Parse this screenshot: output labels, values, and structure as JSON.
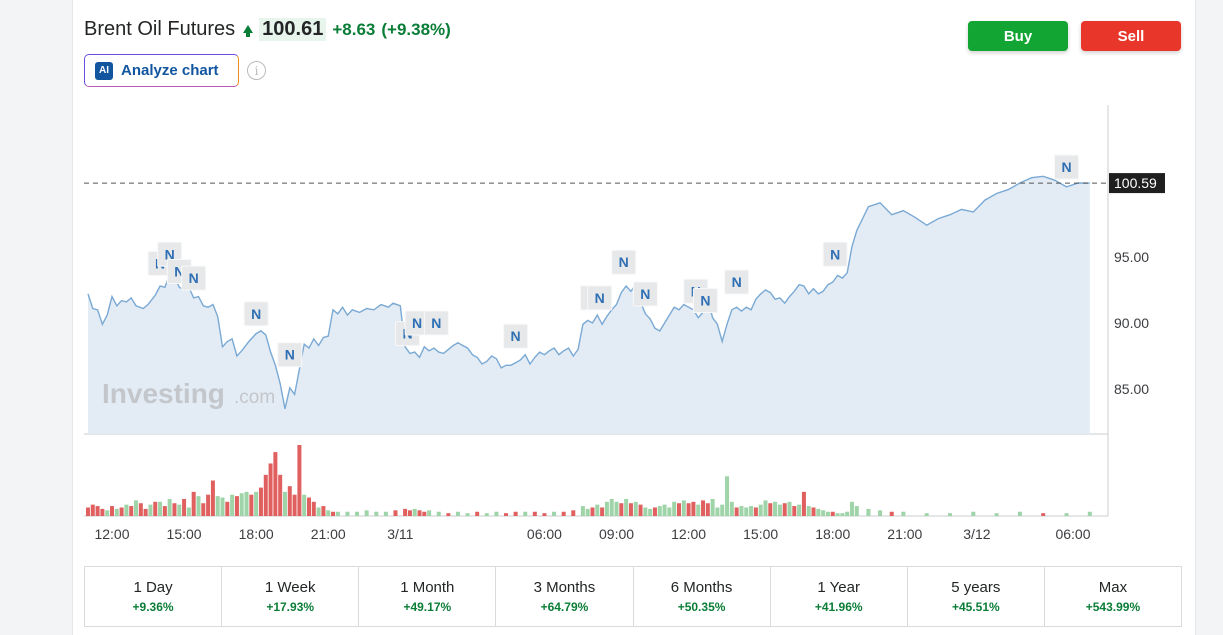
{
  "header": {
    "instrument": "Brent Oil Futures",
    "price": "100.61",
    "change": "+8.63",
    "change_pct": "(+9.38%)",
    "analyze_label": "Analyze chart",
    "ai_badge": "AI",
    "info_glyph": "i"
  },
  "actions": {
    "buy": "Buy",
    "sell": "Sell"
  },
  "watermark": {
    "main": "Investing",
    "suffix": ".com"
  },
  "colors": {
    "up": "#0a7d37",
    "line": "#7aa9d4",
    "area": "#e3ecf5",
    "vol_up": "#9fd4a9",
    "vol_down": "#e06060",
    "buy": "#13a533",
    "sell": "#e8372a"
  },
  "chart_data": {
    "type": "area",
    "yticks": [
      "85.00",
      "90.00",
      "95.00"
    ],
    "ytick_values": [
      85,
      90,
      95
    ],
    "ylim": [
      81.6,
      106.5
    ],
    "x_hours": [
      -13,
      19
    ],
    "xticks": [
      {
        "h": -12,
        "label": "12:00"
      },
      {
        "h": -9,
        "label": "15:00"
      },
      {
        "h": -6,
        "label": "18:00"
      },
      {
        "h": -3,
        "label": "21:00"
      },
      {
        "h": 0,
        "label": "3/11"
      },
      {
        "h": 6,
        "label": "06:00"
      },
      {
        "h": 9,
        "label": "09:00"
      },
      {
        "h": 12,
        "label": "12:00"
      },
      {
        "h": 15,
        "label": "15:00"
      },
      {
        "h": 18,
        "label": "18:00"
      },
      {
        "h": 21,
        "label": "21:00"
      },
      {
        "h": 24,
        "label": "3/12"
      },
      {
        "h": 28,
        "label": "06:00"
      }
    ],
    "last_price_label": "100.59",
    "last_price": 100.59,
    "price_series": [
      [
        -13.0,
        92.2
      ],
      [
        -12.8,
        91.1
      ],
      [
        -12.6,
        91.0
      ],
      [
        -12.4,
        89.9
      ],
      [
        -12.2,
        90.6
      ],
      [
        -12.0,
        92.0
      ],
      [
        -11.8,
        91.3
      ],
      [
        -11.6,
        91.7
      ],
      [
        -11.4,
        91.6
      ],
      [
        -11.2,
        91.9
      ],
      [
        -11.0,
        91.3
      ],
      [
        -10.7,
        91.1
      ],
      [
        -10.5,
        91.4
      ],
      [
        -10.2,
        92.1
      ],
      [
        -10.0,
        92.8
      ],
      [
        -9.8,
        92.7
      ],
      [
        -9.6,
        93.7
      ],
      [
        -9.4,
        93.5
      ],
      [
        -9.2,
        92.7
      ],
      [
        -9.0,
        92.5
      ],
      [
        -8.8,
        92.7
      ],
      [
        -8.6,
        91.9
      ],
      [
        -8.4,
        92.0
      ],
      [
        -8.2,
        91.3
      ],
      [
        -8.0,
        91.2
      ],
      [
        -7.8,
        91.4
      ],
      [
        -7.6,
        90.5
      ],
      [
        -7.4,
        88.2
      ],
      [
        -7.2,
        88.6
      ],
      [
        -7.0,
        88.8
      ],
      [
        -6.8,
        87.5
      ],
      [
        -6.6,
        87.9
      ],
      [
        -6.3,
        88.6
      ],
      [
        -6.0,
        89.2
      ],
      [
        -5.8,
        89.4
      ],
      [
        -5.6,
        89.1
      ],
      [
        -5.4,
        87.8
      ],
      [
        -5.2,
        86.8
      ],
      [
        -5.0,
        85.4
      ],
      [
        -4.8,
        83.5
      ],
      [
        -4.6,
        85.1
      ],
      [
        -4.4,
        84.6
      ],
      [
        -4.2,
        86.5
      ],
      [
        -4.0,
        88.4
      ],
      [
        -3.8,
        88.1
      ],
      [
        -3.6,
        88.8
      ],
      [
        -3.4,
        88.3
      ],
      [
        -3.2,
        88.9
      ],
      [
        -3.0,
        89.0
      ],
      [
        -2.8,
        91.0
      ],
      [
        -2.6,
        90.7
      ],
      [
        -2.4,
        91.2
      ],
      [
        -2.2,
        90.6
      ],
      [
        -2.0,
        91.0
      ],
      [
        -1.7,
        90.8
      ],
      [
        -1.4,
        91.1
      ],
      [
        -1.1,
        91.0
      ],
      [
        -0.8,
        91.4
      ],
      [
        -0.5,
        91.2
      ],
      [
        -0.3,
        91.5
      ],
      [
        0.0,
        91.3
      ],
      [
        0.2,
        88.2
      ],
      [
        0.4,
        87.7
      ],
      [
        0.6,
        87.8
      ],
      [
        0.8,
        87.4
      ],
      [
        1.0,
        88.2
      ],
      [
        1.2,
        87.9
      ],
      [
        1.4,
        88.1
      ],
      [
        1.6,
        87.8
      ],
      [
        1.8,
        87.7
      ],
      [
        2.0,
        88.0
      ],
      [
        2.2,
        88.3
      ],
      [
        2.4,
        88.5
      ],
      [
        2.6,
        88.3
      ],
      [
        2.8,
        88.1
      ],
      [
        3.0,
        87.6
      ],
      [
        3.2,
        87.4
      ],
      [
        3.4,
        86.9
      ],
      [
        3.6,
        87.1
      ],
      [
        3.8,
        87.5
      ],
      [
        4.0,
        87.3
      ],
      [
        4.2,
        86.6
      ],
      [
        4.4,
        86.8
      ],
      [
        4.6,
        86.8
      ],
      [
        4.8,
        87.0
      ],
      [
        5.0,
        87.2
      ],
      [
        5.2,
        87.6
      ],
      [
        5.4,
        86.9
      ],
      [
        5.6,
        87.4
      ],
      [
        5.8,
        87.8
      ],
      [
        6.0,
        87.6
      ],
      [
        6.2,
        87.9
      ],
      [
        6.4,
        88.1
      ],
      [
        6.6,
        87.6
      ],
      [
        6.8,
        87.9
      ],
      [
        7.0,
        88.1
      ],
      [
        7.2,
        87.5
      ],
      [
        7.4,
        88.0
      ],
      [
        7.6,
        89.9
      ],
      [
        7.8,
        90.2
      ],
      [
        8.0,
        90.0
      ],
      [
        8.2,
        90.6
      ],
      [
        8.4,
        89.9
      ],
      [
        8.6,
        90.5
      ],
      [
        8.8,
        91.0
      ],
      [
        9.0,
        91.4
      ],
      [
        9.2,
        92.3
      ],
      [
        9.4,
        92.8
      ],
      [
        9.6,
        92.4
      ],
      [
        9.8,
        92.9
      ],
      [
        10.0,
        91.6
      ],
      [
        10.2,
        90.7
      ],
      [
        10.4,
        90.3
      ],
      [
        10.6,
        89.6
      ],
      [
        10.8,
        89.4
      ],
      [
        11.0,
        90.0
      ],
      [
        11.2,
        90.6
      ],
      [
        11.4,
        91.2
      ],
      [
        11.6,
        91.0
      ],
      [
        11.8,
        91.4
      ],
      [
        12.0,
        91.2
      ],
      [
        12.2,
        91.0
      ],
      [
        12.4,
        90.4
      ],
      [
        12.6,
        90.8
      ],
      [
        12.8,
        91.8
      ],
      [
        13.0,
        90.4
      ],
      [
        13.2,
        89.9
      ],
      [
        13.4,
        88.6
      ],
      [
        13.6,
        89.9
      ],
      [
        13.8,
        91.0
      ],
      [
        14.0,
        91.2
      ],
      [
        14.2,
        90.9
      ],
      [
        14.4,
        91.2
      ],
      [
        14.6,
        91.0
      ],
      [
        14.8,
        91.8
      ],
      [
        15.0,
        92.2
      ],
      [
        15.2,
        92.5
      ],
      [
        15.4,
        92.3
      ],
      [
        15.6,
        91.8
      ],
      [
        15.8,
        91.9
      ],
      [
        16.0,
        91.5
      ],
      [
        16.2,
        92.0
      ],
      [
        16.4,
        92.4
      ],
      [
        16.6,
        92.9
      ],
      [
        16.8,
        92.8
      ],
      [
        17.0,
        92.2
      ],
      [
        17.2,
        92.6
      ],
      [
        17.4,
        92.2
      ],
      [
        17.6,
        92.4
      ],
      [
        17.8,
        92.9
      ],
      [
        18.0,
        93.1
      ],
      [
        18.2,
        93.6
      ],
      [
        18.4,
        93.4
      ],
      [
        18.6,
        93.8
      ],
      [
        18.8,
        95.8
      ],
      [
        19.0,
        97.0
      ]
    ],
    "price_series_tail": [
      [
        19.0,
        97.0
      ],
      [
        19.2,
        98.8
      ],
      [
        19.4,
        99.1
      ],
      [
        19.6,
        98.2
      ],
      [
        19.8,
        98.5
      ],
      [
        20.0,
        98.0
      ],
      [
        20.2,
        97.4
      ],
      [
        20.4,
        97.9
      ],
      [
        20.6,
        98.2
      ],
      [
        20.8,
        98.6
      ],
      [
        21.0,
        98.4
      ],
      [
        21.2,
        99.3
      ],
      [
        21.4,
        99.8
      ],
      [
        21.6,
        100.1
      ],
      [
        21.8,
        100.6
      ],
      [
        22.0,
        101.0
      ],
      [
        22.2,
        101.1
      ],
      [
        22.4,
        100.8
      ],
      [
        22.6,
        100.3
      ],
      [
        22.8,
        100.6
      ],
      [
        23.0,
        100.59
      ]
    ],
    "news_markers_hours": [
      -10.0,
      -9.6,
      -9.2,
      -8.6,
      -6.0,
      -4.6,
      0.3,
      0.7,
      1.5,
      4.8,
      8.0,
      8.3,
      9.3,
      10.2,
      12.3,
      12.7,
      14.0,
      18.1,
      22.6
    ],
    "news_marker_prices": [
      94.5,
      95.2,
      93.9,
      93.4,
      90.7,
      87.6,
      89.2,
      90.0,
      90.0,
      89.0,
      91.9,
      91.9,
      94.6,
      92.2,
      92.4,
      91.7,
      93.1,
      95.2,
      101.8
    ],
    "news_marker_label": "N",
    "volume_bars": [
      [
        -13.0,
        1,
        0.12
      ],
      [
        -12.8,
        1,
        0.16
      ],
      [
        -12.6,
        1,
        0.14
      ],
      [
        -12.4,
        1,
        0.1
      ],
      [
        -12.2,
        0,
        0.08
      ],
      [
        -12.0,
        1,
        0.14
      ],
      [
        -11.8,
        0,
        0.1
      ],
      [
        -11.6,
        1,
        0.12
      ],
      [
        -11.4,
        0,
        0.16
      ],
      [
        -11.2,
        1,
        0.14
      ],
      [
        -11.0,
        0,
        0.22
      ],
      [
        -10.8,
        1,
        0.18
      ],
      [
        -10.6,
        1,
        0.1
      ],
      [
        -10.4,
        0,
        0.16
      ],
      [
        -10.2,
        1,
        0.2
      ],
      [
        -10.0,
        0,
        0.2
      ],
      [
        -9.8,
        1,
        0.14
      ],
      [
        -9.6,
        0,
        0.24
      ],
      [
        -9.4,
        1,
        0.18
      ],
      [
        -9.2,
        0,
        0.16
      ],
      [
        -9.0,
        1,
        0.24
      ],
      [
        -8.8,
        0,
        0.12
      ],
      [
        -8.6,
        1,
        0.34
      ],
      [
        -8.4,
        0,
        0.28
      ],
      [
        -8.2,
        1,
        0.18
      ],
      [
        -8.0,
        1,
        0.3
      ],
      [
        -7.8,
        1,
        0.5
      ],
      [
        -7.6,
        0,
        0.28
      ],
      [
        -7.4,
        0,
        0.26
      ],
      [
        -7.2,
        1,
        0.2
      ],
      [
        -7.0,
        0,
        0.3
      ],
      [
        -6.8,
        1,
        0.28
      ],
      [
        -6.6,
        0,
        0.32
      ],
      [
        -6.4,
        0,
        0.34
      ],
      [
        -6.2,
        1,
        0.3
      ],
      [
        -6.0,
        0,
        0.34
      ],
      [
        -5.8,
        1,
        0.4
      ],
      [
        -5.6,
        1,
        0.58
      ],
      [
        -5.4,
        1,
        0.74
      ],
      [
        -5.2,
        1,
        0.9
      ],
      [
        -5.0,
        1,
        0.58
      ],
      [
        -4.8,
        0,
        0.34
      ],
      [
        -4.6,
        1,
        0.42
      ],
      [
        -4.4,
        1,
        0.3
      ],
      [
        -4.2,
        1,
        1.0
      ],
      [
        -4.0,
        0,
        0.3
      ],
      [
        -3.8,
        1,
        0.26
      ],
      [
        -3.6,
        1,
        0.2
      ],
      [
        -3.4,
        0,
        0.12
      ],
      [
        -3.2,
        1,
        0.14
      ],
      [
        -3.0,
        0,
        0.08
      ],
      [
        -2.8,
        1,
        0.06
      ],
      [
        -2.6,
        0,
        0.06
      ],
      [
        -2.2,
        0,
        0.06
      ],
      [
        -1.8,
        0,
        0.06
      ],
      [
        -1.4,
        0,
        0.08
      ],
      [
        -1.0,
        0,
        0.06
      ],
      [
        -0.6,
        0,
        0.06
      ],
      [
        -0.2,
        1,
        0.08
      ],
      [
        0.2,
        1,
        0.1
      ],
      [
        0.4,
        1,
        0.08
      ],
      [
        0.6,
        0,
        0.1
      ],
      [
        0.8,
        1,
        0.08
      ],
      [
        1.0,
        1,
        0.06
      ],
      [
        1.2,
        0,
        0.08
      ],
      [
        1.6,
        0,
        0.06
      ],
      [
        2.0,
        1,
        0.04
      ],
      [
        2.4,
        0,
        0.06
      ],
      [
        2.8,
        0,
        0.04
      ],
      [
        3.2,
        1,
        0.06
      ],
      [
        3.6,
        0,
        0.04
      ],
      [
        4.0,
        0,
        0.06
      ],
      [
        4.4,
        1,
        0.04
      ],
      [
        4.8,
        1,
        0.06
      ],
      [
        5.2,
        0,
        0.06
      ],
      [
        5.6,
        1,
        0.06
      ],
      [
        6.0,
        1,
        0.04
      ],
      [
        6.4,
        0,
        0.06
      ],
      [
        6.8,
        1,
        0.06
      ],
      [
        7.2,
        1,
        0.08
      ],
      [
        7.6,
        0,
        0.14
      ],
      [
        7.8,
        0,
        0.1
      ],
      [
        8.0,
        1,
        0.12
      ],
      [
        8.2,
        0,
        0.16
      ],
      [
        8.4,
        1,
        0.12
      ],
      [
        8.6,
        0,
        0.2
      ],
      [
        8.8,
        0,
        0.24
      ],
      [
        9.0,
        0,
        0.2
      ],
      [
        9.2,
        1,
        0.18
      ],
      [
        9.4,
        0,
        0.24
      ],
      [
        9.6,
        1,
        0.18
      ],
      [
        9.8,
        0,
        0.2
      ],
      [
        10.0,
        1,
        0.16
      ],
      [
        10.2,
        0,
        0.12
      ],
      [
        10.4,
        0,
        0.1
      ],
      [
        10.6,
        1,
        0.12
      ],
      [
        10.8,
        0,
        0.14
      ],
      [
        11.0,
        0,
        0.16
      ],
      [
        11.2,
        0,
        0.12
      ],
      [
        11.4,
        0,
        0.2
      ],
      [
        11.6,
        1,
        0.18
      ],
      [
        11.8,
        0,
        0.22
      ],
      [
        12.0,
        1,
        0.18
      ],
      [
        12.2,
        1,
        0.2
      ],
      [
        12.4,
        0,
        0.16
      ],
      [
        12.6,
        1,
        0.22
      ],
      [
        12.8,
        1,
        0.18
      ],
      [
        13.0,
        0,
        0.24
      ],
      [
        13.2,
        0,
        0.12
      ],
      [
        13.4,
        0,
        0.16
      ],
      [
        13.6,
        0,
        0.56
      ],
      [
        13.8,
        0,
        0.2
      ],
      [
        14.0,
        1,
        0.12
      ],
      [
        14.2,
        0,
        0.14
      ],
      [
        14.4,
        0,
        0.12
      ],
      [
        14.6,
        0,
        0.14
      ],
      [
        14.8,
        1,
        0.12
      ],
      [
        15.0,
        0,
        0.16
      ],
      [
        15.2,
        0,
        0.22
      ],
      [
        15.4,
        1,
        0.18
      ],
      [
        15.6,
        0,
        0.2
      ],
      [
        15.8,
        0,
        0.16
      ],
      [
        16.0,
        1,
        0.18
      ],
      [
        16.2,
        0,
        0.2
      ],
      [
        16.4,
        1,
        0.14
      ],
      [
        16.6,
        0,
        0.16
      ],
      [
        16.8,
        1,
        0.34
      ],
      [
        17.0,
        0,
        0.14
      ],
      [
        17.2,
        1,
        0.12
      ],
      [
        17.4,
        0,
        0.1
      ],
      [
        17.6,
        0,
        0.08
      ],
      [
        17.8,
        0,
        0.06
      ],
      [
        18.0,
        1,
        0.06
      ],
      [
        18.2,
        0,
        0.04
      ],
      [
        18.4,
        0,
        0.04
      ],
      [
        18.6,
        0,
        0.06
      ],
      [
        18.8,
        0,
        0.2
      ],
      [
        19.0,
        0,
        0.14
      ],
      [
        19.2,
        0,
        0.1
      ],
      [
        19.4,
        0,
        0.08
      ],
      [
        19.6,
        1,
        0.06
      ],
      [
        19.8,
        0,
        0.06
      ],
      [
        20.2,
        0,
        0.04
      ],
      [
        20.6,
        0,
        0.04
      ],
      [
        21.0,
        0,
        0.06
      ],
      [
        21.4,
        0,
        0.04
      ],
      [
        21.8,
        0,
        0.06
      ],
      [
        22.2,
        1,
        0.04
      ],
      [
        22.6,
        0,
        0.04
      ],
      [
        23.0,
        0,
        0.06
      ]
    ]
  },
  "periods": [
    {
      "label": "1 Day",
      "value": "+9.36%"
    },
    {
      "label": "1 Week",
      "value": "+17.93%"
    },
    {
      "label": "1 Month",
      "value": "+49.17%"
    },
    {
      "label": "3 Months",
      "value": "+64.79%"
    },
    {
      "label": "6 Months",
      "value": "+50.35%"
    },
    {
      "label": "1 Year",
      "value": "+41.96%"
    },
    {
      "label": "5 years",
      "value": "+45.51%"
    },
    {
      "label": "Max",
      "value": "+543.99%"
    }
  ]
}
